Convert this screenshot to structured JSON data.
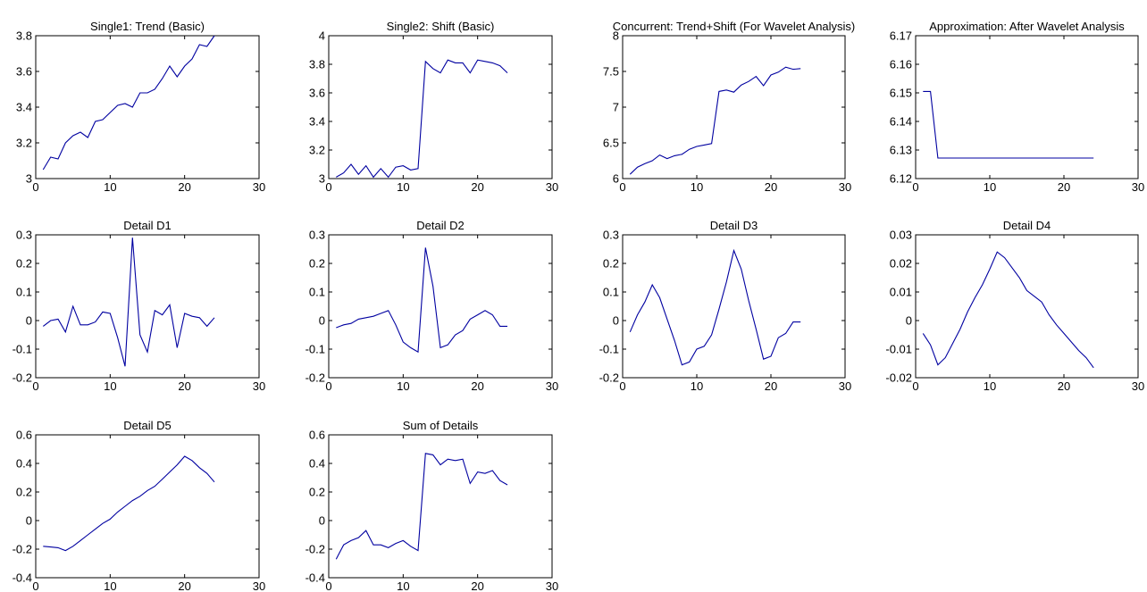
{
  "chart_data": [
    {
      "type": "line",
      "title": "Single1: Trend (Basic)",
      "xlim": [
        0,
        30
      ],
      "ylim": [
        3,
        3.8
      ],
      "xticks": [
        0,
        10,
        20,
        30
      ],
      "yticks": [
        3,
        3.2,
        3.4,
        3.6,
        3.8
      ],
      "xtick_labels": [
        "0",
        "10",
        "20",
        "30"
      ],
      "ytick_labels": [
        "3",
        "3.2",
        "3.4",
        "3.6",
        "3.8"
      ],
      "color": "#0000a0",
      "x": [
        1,
        2,
        3,
        4,
        5,
        6,
        7,
        8,
        9,
        10,
        11,
        12,
        13,
        14,
        15,
        16,
        17,
        18,
        19,
        20,
        21,
        22,
        23,
        24
      ],
      "y": [
        3.05,
        3.12,
        3.11,
        3.2,
        3.24,
        3.26,
        3.23,
        3.32,
        3.33,
        3.37,
        3.41,
        3.42,
        3.4,
        3.48,
        3.48,
        3.5,
        3.56,
        3.63,
        3.57,
        3.63,
        3.67,
        3.75,
        3.74,
        3.8
      ]
    },
    {
      "type": "line",
      "title": "Single2: Shift (Basic)",
      "xlim": [
        0,
        30
      ],
      "ylim": [
        3,
        4
      ],
      "xticks": [
        0,
        10,
        20,
        30
      ],
      "yticks": [
        3,
        3.2,
        3.4,
        3.6,
        3.8,
        4
      ],
      "xtick_labels": [
        "0",
        "10",
        "20",
        "30"
      ],
      "ytick_labels": [
        "3",
        "3.2",
        "3.4",
        "3.6",
        "3.8",
        "4"
      ],
      "color": "#0000a0",
      "x": [
        1,
        2,
        3,
        4,
        5,
        6,
        7,
        8,
        9,
        10,
        11,
        12,
        13,
        14,
        15,
        16,
        17,
        18,
        19,
        20,
        21,
        22,
        23,
        24
      ],
      "y": [
        3.01,
        3.04,
        3.1,
        3.03,
        3.09,
        3.01,
        3.07,
        3.01,
        3.08,
        3.09,
        3.06,
        3.07,
        3.82,
        3.77,
        3.74,
        3.83,
        3.81,
        3.81,
        3.74,
        3.83,
        3.82,
        3.81,
        3.79,
        3.74
      ]
    },
    {
      "type": "line",
      "title": "Concurrent: Trend+Shift (For Wavelet Analysis)",
      "xlim": [
        0,
        30
      ],
      "ylim": [
        6,
        8
      ],
      "xticks": [
        0,
        10,
        20,
        30
      ],
      "yticks": [
        6,
        6.5,
        7,
        7.5,
        8
      ],
      "xtick_labels": [
        "0",
        "10",
        "20",
        "30"
      ],
      "ytick_labels": [
        "6",
        "6.5",
        "7",
        "7.5",
        "8"
      ],
      "color": "#0000a0",
      "x": [
        1,
        2,
        3,
        4,
        5,
        6,
        7,
        8,
        9,
        10,
        11,
        12,
        13,
        14,
        15,
        16,
        17,
        18,
        19,
        20,
        21,
        22,
        23,
        24
      ],
      "y": [
        6.06,
        6.16,
        6.21,
        6.25,
        6.33,
        6.28,
        6.32,
        6.34,
        6.41,
        6.45,
        6.47,
        6.49,
        7.22,
        7.24,
        7.21,
        7.31,
        7.36,
        7.43,
        7.3,
        7.45,
        7.49,
        7.56,
        7.53,
        7.54
      ]
    },
    {
      "type": "line",
      "title": "Approximation: After Wavelet Analysis",
      "xlim": [
        0,
        30
      ],
      "ylim": [
        6.12,
        6.17
      ],
      "xticks": [
        0,
        10,
        20,
        30
      ],
      "yticks": [
        6.12,
        6.13,
        6.14,
        6.15,
        6.16,
        6.17
      ],
      "xtick_labels": [
        "0",
        "10",
        "20",
        "30"
      ],
      "ytick_labels": [
        "6.12",
        "6.13",
        "6.14",
        "6.15",
        "6.16",
        "6.17"
      ],
      "color": "#0000a0",
      "x": [
        1,
        2,
        3,
        4,
        5,
        6,
        7,
        8,
        9,
        10,
        11,
        12,
        13,
        14,
        15,
        16,
        17,
        18,
        19,
        20,
        21,
        22,
        23,
        24
      ],
      "y": [
        6.1505,
        6.1505,
        6.1272,
        6.1272,
        6.1272,
        6.1272,
        6.1272,
        6.1272,
        6.1272,
        6.1272,
        6.1272,
        6.1272,
        6.1272,
        6.1272,
        6.1272,
        6.1272,
        6.1272,
        6.1272,
        6.1272,
        6.1272,
        6.1272,
        6.1272,
        6.1272,
        6.1272
      ]
    },
    {
      "type": "line",
      "title": "Detail D1",
      "xlim": [
        0,
        30
      ],
      "ylim": [
        -0.2,
        0.3
      ],
      "xticks": [
        0,
        10,
        20,
        30
      ],
      "yticks": [
        -0.2,
        -0.1,
        0,
        0.1,
        0.2,
        0.3
      ],
      "xtick_labels": [
        "0",
        "10",
        "20",
        "30"
      ],
      "ytick_labels": [
        "-0.2",
        "-0.1",
        "0",
        "0.1",
        "0.2",
        "0.3"
      ],
      "color": "#0000a0",
      "x": [
        1,
        2,
        3,
        4,
        5,
        6,
        7,
        8,
        9,
        10,
        11,
        12,
        13,
        14,
        15,
        16,
        17,
        18,
        19,
        20,
        21,
        22,
        23,
        24
      ],
      "y": [
        -0.02,
        0.0,
        0.005,
        -0.04,
        0.05,
        -0.015,
        -0.015,
        -0.005,
        0.03,
        0.025,
        -0.06,
        -0.16,
        0.29,
        -0.05,
        -0.11,
        0.035,
        0.02,
        0.055,
        -0.095,
        0.025,
        0.015,
        0.01,
        -0.02,
        0.01
      ]
    },
    {
      "type": "line",
      "title": "Detail D2",
      "xlim": [
        0,
        30
      ],
      "ylim": [
        -0.2,
        0.3
      ],
      "xticks": [
        0,
        10,
        20,
        30
      ],
      "yticks": [
        -0.2,
        -0.1,
        0,
        0.1,
        0.2,
        0.3
      ],
      "xtick_labels": [
        "0",
        "10",
        "20",
        "30"
      ],
      "ytick_labels": [
        "-0.2",
        "-0.1",
        "0",
        "0.1",
        "0.2",
        "0.3"
      ],
      "color": "#0000a0",
      "x": [
        1,
        2,
        3,
        4,
        5,
        6,
        7,
        8,
        9,
        10,
        11,
        12,
        13,
        14,
        15,
        16,
        17,
        18,
        19,
        20,
        21,
        22,
        23,
        24
      ],
      "y": [
        -0.025,
        -0.015,
        -0.01,
        0.005,
        0.01,
        0.015,
        0.025,
        0.035,
        -0.015,
        -0.075,
        -0.095,
        -0.11,
        0.255,
        0.12,
        -0.095,
        -0.085,
        -0.05,
        -0.035,
        0.005,
        0.02,
        0.035,
        0.02,
        -0.02,
        -0.02
      ]
    },
    {
      "type": "line",
      "title": "Detail D3",
      "xlim": [
        0,
        30
      ],
      "ylim": [
        -0.2,
        0.3
      ],
      "xticks": [
        0,
        10,
        20,
        30
      ],
      "yticks": [
        -0.2,
        -0.1,
        0,
        0.1,
        0.2,
        0.3
      ],
      "xtick_labels": [
        "0",
        "10",
        "20",
        "30"
      ],
      "ytick_labels": [
        "-0.2",
        "-0.1",
        "0",
        "0.1",
        "0.2",
        "0.3"
      ],
      "color": "#0000a0",
      "x": [
        1,
        2,
        3,
        4,
        5,
        6,
        7,
        8,
        9,
        10,
        11,
        12,
        13,
        14,
        15,
        16,
        17,
        18,
        19,
        20,
        21,
        22,
        23,
        24
      ],
      "y": [
        -0.04,
        0.02,
        0.065,
        0.125,
        0.08,
        0.005,
        -0.07,
        -0.155,
        -0.145,
        -0.1,
        -0.09,
        -0.05,
        0.04,
        0.135,
        0.245,
        0.18,
        0.07,
        -0.03,
        -0.135,
        -0.125,
        -0.06,
        -0.045,
        -0.005,
        -0.005
      ]
    },
    {
      "type": "line",
      "title": "Detail D4",
      "xlim": [
        0,
        30
      ],
      "ylim": [
        -0.02,
        0.03
      ],
      "xticks": [
        0,
        10,
        20,
        30
      ],
      "yticks": [
        -0.02,
        -0.01,
        0,
        0.01,
        0.02,
        0.03
      ],
      "xtick_labels": [
        "0",
        "10",
        "20",
        "30"
      ],
      "ytick_labels": [
        "-0.02",
        "-0.01",
        "0",
        "0.01",
        "0.02",
        "0.03"
      ],
      "color": "#0000a0",
      "x": [
        1,
        2,
        3,
        4,
        5,
        6,
        7,
        8,
        9,
        10,
        11,
        12,
        13,
        14,
        15,
        16,
        17,
        18,
        19,
        20,
        21,
        22,
        23,
        24
      ],
      "y": [
        -0.0045,
        -0.0085,
        -0.0155,
        -0.013,
        -0.008,
        -0.003,
        0.003,
        0.008,
        0.0125,
        0.018,
        0.024,
        0.022,
        0.0185,
        0.015,
        0.0105,
        0.0085,
        0.0065,
        0.002,
        -0.0015,
        -0.0045,
        -0.0075,
        -0.0105,
        -0.013,
        -0.0165
      ]
    },
    {
      "type": "line",
      "title": "Detail D5",
      "xlim": [
        0,
        30
      ],
      "ylim": [
        -0.4,
        0.6
      ],
      "xticks": [
        0,
        10,
        20,
        30
      ],
      "yticks": [
        -0.4,
        -0.2,
        0,
        0.2,
        0.4,
        0.6
      ],
      "xtick_labels": [
        "0",
        "10",
        "20",
        "30"
      ],
      "ytick_labels": [
        "-0.4",
        "-0.2",
        "0",
        "0.2",
        "0.4",
        "0.6"
      ],
      "color": "#0000a0",
      "x": [
        1,
        2,
        3,
        4,
        5,
        6,
        7,
        8,
        9,
        10,
        11,
        12,
        13,
        14,
        15,
        16,
        17,
        18,
        19,
        20,
        21,
        22,
        23,
        24
      ],
      "y": [
        -0.18,
        -0.185,
        -0.19,
        -0.21,
        -0.18,
        -0.14,
        -0.1,
        -0.06,
        -0.02,
        0.01,
        0.06,
        0.1,
        0.14,
        0.17,
        0.21,
        0.24,
        0.29,
        0.34,
        0.39,
        0.45,
        0.42,
        0.37,
        0.33,
        0.27
      ]
    },
    {
      "type": "line",
      "title": "Sum of Details",
      "xlim": [
        0,
        30
      ],
      "ylim": [
        -0.4,
        0.6
      ],
      "xticks": [
        0,
        10,
        20,
        30
      ],
      "yticks": [
        -0.4,
        -0.2,
        0,
        0.2,
        0.4,
        0.6
      ],
      "xtick_labels": [
        "0",
        "10",
        "20",
        "30"
      ],
      "ytick_labels": [
        "-0.4",
        "-0.2",
        "0",
        "0.2",
        "0.4",
        "0.6"
      ],
      "color": "#0000a0",
      "x": [
        1,
        2,
        3,
        4,
        5,
        6,
        7,
        8,
        9,
        10,
        11,
        12,
        13,
        14,
        15,
        16,
        17,
        18,
        19,
        20,
        21,
        22,
        23,
        24
      ],
      "y": [
        -0.27,
        -0.17,
        -0.14,
        -0.12,
        -0.07,
        -0.17,
        -0.17,
        -0.19,
        -0.16,
        -0.14,
        -0.18,
        -0.21,
        0.47,
        0.46,
        0.39,
        0.43,
        0.42,
        0.43,
        0.26,
        0.34,
        0.33,
        0.35,
        0.28,
        0.25
      ]
    }
  ]
}
